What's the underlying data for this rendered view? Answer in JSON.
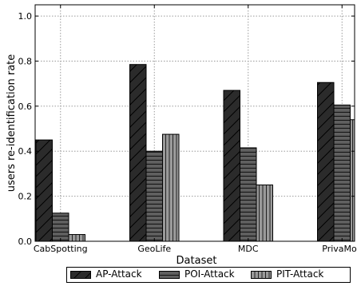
{
  "chart_data": {
    "type": "bar",
    "xlabel": "Dataset",
    "ylabel": "users re-identification rate",
    "ylim": [
      0,
      1.05
    ],
    "yticks": [
      "0.0",
      "0.2",
      "0.4",
      "0.6",
      "0.8",
      "1.0"
    ],
    "categories": [
      "CabSpotting",
      "GeoLife",
      "MDC",
      "PrivaMov"
    ],
    "grid": true,
    "legend_position": "bottom",
    "series": [
      {
        "name": "AP-Attack",
        "values": [
          0.45,
          0.785,
          0.67,
          0.705
        ],
        "color": "#2b2b2b",
        "hatch": "diagonal"
      },
      {
        "name": "POI-Attack",
        "values": [
          0.125,
          0.4,
          0.415,
          0.605
        ],
        "color": "#5f5f5f",
        "hatch": "horizontal"
      },
      {
        "name": "PIT-Attack",
        "values": [
          0.03,
          0.475,
          0.25,
          0.54
        ],
        "color": "#9a9a9a",
        "hatch": "vertical"
      }
    ]
  }
}
